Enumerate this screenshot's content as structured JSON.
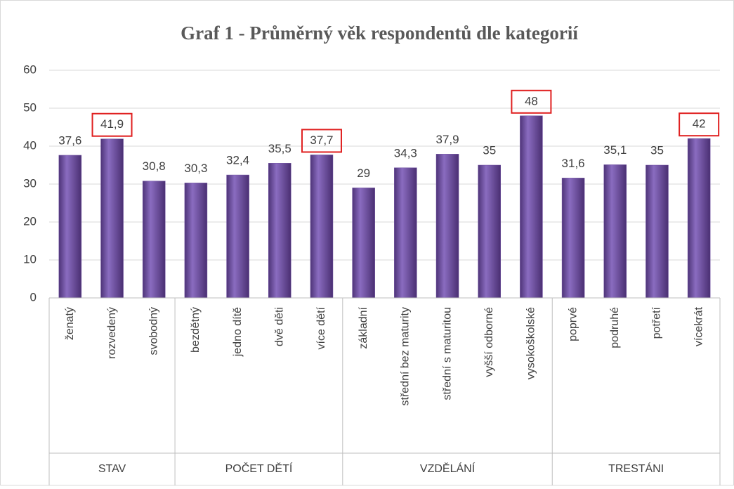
{
  "chart_data": {
    "type": "bar",
    "title": "Graf 1 - Průměrný věk respondentů dle kategorií",
    "color": "#6e4fa0",
    "highlight_color": "#e02020",
    "ylim": [
      0,
      60
    ],
    "yticks": [
      0,
      10,
      20,
      30,
      40,
      50,
      60
    ],
    "grid": true,
    "groups": [
      {
        "name": "STAV",
        "categories": [
          "ženatý",
          "rozvedený",
          "svobodný"
        ],
        "values": [
          37.6,
          41.9,
          30.8
        ],
        "value_labels": [
          "37,6",
          "41,9",
          "30,8"
        ],
        "highlight": 1
      },
      {
        "name": "POČET DĚTÍ",
        "categories": [
          "bezdětný",
          "jedno dítě",
          "dvě děti",
          "více dětí"
        ],
        "values": [
          30.3,
          32.4,
          35.5,
          37.7
        ],
        "value_labels": [
          "30,3",
          "32,4",
          "35,5",
          "37,7"
        ],
        "highlight": 3
      },
      {
        "name": "VZDĚLÁNÍ",
        "categories": [
          "základní",
          "střední bez maturity",
          "střední s maturitou",
          "vyšší odborné",
          "vysokoškolské"
        ],
        "values": [
          29,
          34.3,
          37.9,
          35,
          48
        ],
        "value_labels": [
          "29",
          "34,3",
          "37,9",
          "35",
          "48"
        ],
        "highlight": 4
      },
      {
        "name": "TRESTÁNI",
        "categories": [
          "poprvé",
          "podruhé",
          "potřetí",
          "vícekrát"
        ],
        "values": [
          31.6,
          35.1,
          35,
          42
        ],
        "value_labels": [
          "31,6",
          "35,1",
          "35",
          "42"
        ],
        "highlight": 3
      }
    ]
  }
}
